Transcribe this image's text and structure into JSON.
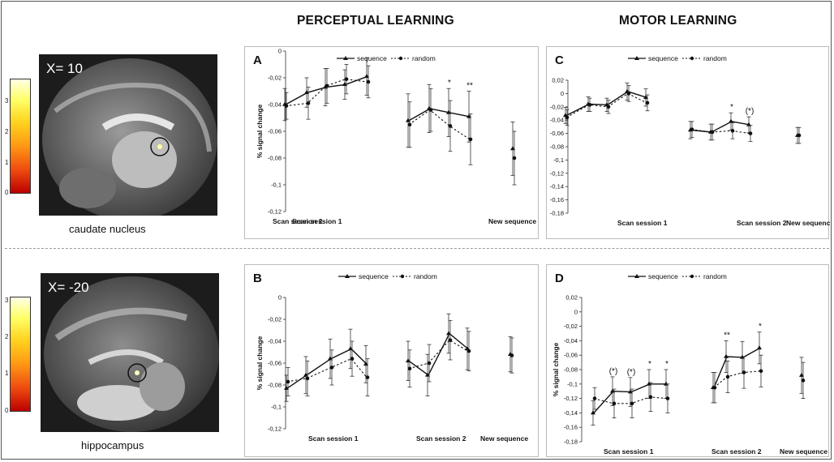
{
  "columns": {
    "perceptual": "PERCEPTUAL LEARNING",
    "motor": "MOTOR LEARNING"
  },
  "brains": [
    {
      "slice_label": "X= 10",
      "region": "caudate nucleus",
      "colorbar_ticks": [
        "3",
        "2",
        "1",
        "0"
      ]
    },
    {
      "slice_label": "X= -20",
      "region": "hippocampus",
      "colorbar_ticks": [
        "3",
        "2",
        "1",
        "0"
      ]
    }
  ],
  "chart_data": [
    {
      "panel": "A",
      "type": "line",
      "ylabel": "% signal change",
      "ylim": [
        -0.12,
        0
      ],
      "yticks": [
        "0",
        "-0,02",
        "-0,04",
        "-0,06",
        "-0,08",
        "-0,1",
        "-0,12"
      ],
      "session_labels": [
        "Scan session 1",
        "Scan session 2",
        "New sequence"
      ],
      "legend": [
        "sequence",
        "random"
      ],
      "series": [
        {
          "name": "sequence",
          "groups": [
            [
              -0.04,
              -0.031,
              -0.027,
              -0.025,
              -0.019
            ],
            [
              -0.052,
              -0.043,
              -0.046,
              -0.049
            ],
            [
              -0.073
            ]
          ],
          "errors": [
            [
              0.012,
              0.011,
              0.014,
              0.011,
              0.014
            ],
            [
              0.02,
              0.018,
              0.018,
              0.019
            ],
            [
              0.02
            ]
          ]
        },
        {
          "name": "random",
          "groups": [
            [
              -0.041,
              -0.039,
              -0.026,
              -0.021,
              -0.023
            ],
            [
              -0.055,
              -0.044,
              -0.056,
              -0.066
            ],
            [
              -0.08
            ]
          ],
          "errors": [
            [
              0.01,
              0.012,
              0.013,
              0.011,
              0.012
            ],
            [
              0.017,
              0.016,
              0.019,
              0.019
            ],
            [
              0.02
            ]
          ]
        }
      ],
      "annotations": [
        {
          "group": 1,
          "index": 2,
          "text": "*"
        },
        {
          "group": 1,
          "index": 3,
          "text": "**"
        }
      ]
    },
    {
      "panel": "C",
      "type": "line",
      "ylabel": "% signal change",
      "ylim": [
        -0.18,
        0.02
      ],
      "yticks": [
        "0,02",
        "0",
        "-0,02",
        "-0,04",
        "-0,06",
        "-0,08",
        "-0,1",
        "-0,12",
        "-0,14",
        "-0,16",
        "-0,18"
      ],
      "session_labels": [
        "Scan session 1",
        "Scan session 2",
        "New sequence"
      ],
      "legend": [
        "sequence",
        "random"
      ],
      "series": [
        {
          "name": "sequence",
          "groups": [
            [
              -0.033,
              -0.016,
              -0.017,
              0.003,
              -0.006
            ],
            [
              -0.055,
              -0.058,
              -0.042,
              -0.047
            ],
            [
              -0.063
            ]
          ],
          "errors": [
            [
              0.012,
              0.011,
              0.01,
              0.013,
              0.013
            ],
            [
              0.013,
              0.012,
              0.013,
              0.012
            ],
            [
              0.012
            ]
          ]
        },
        {
          "name": "random",
          "groups": [
            [
              -0.036,
              -0.017,
              -0.02,
              0,
              -0.014
            ],
            [
              -0.054,
              -0.058,
              -0.056,
              -0.06
            ],
            [
              -0.063
            ]
          ],
          "errors": [
            [
              0.012,
              0.01,
              0.01,
              0.012,
              0.012
            ],
            [
              0.012,
              0.012,
              0.012,
              0.012
            ],
            [
              0.012
            ]
          ]
        }
      ],
      "annotations": [
        {
          "group": 1,
          "index": 2,
          "text": "*"
        },
        {
          "group": 1,
          "index": 3,
          "text": "(*)"
        }
      ]
    },
    {
      "panel": "B",
      "type": "line",
      "ylabel": "% signal change",
      "ylim": [
        -0.12,
        0
      ],
      "yticks": [
        "0",
        "-0,02",
        "-0,04",
        "-0,06",
        "-0,08",
        "-0,1",
        "-0,12"
      ],
      "session_labels": [
        "Scan session 1",
        "Scan session 2",
        "New sequence"
      ],
      "legend": [
        "sequence",
        "random"
      ],
      "series": [
        {
          "name": "sequence",
          "groups": [
            [
              -0.083,
              -0.071,
              -0.056,
              -0.047,
              -0.061
            ],
            [
              -0.058,
              -0.071,
              -0.033,
              -0.047
            ],
            [
              -0.052
            ]
          ],
          "errors": [
            [
              0.012,
              0.017,
              0.018,
              0.018,
              0.017
            ],
            [
              0.018,
              0.019,
              0.018,
              0.019
            ],
            [
              0.016
            ]
          ]
        },
        {
          "name": "random",
          "groups": [
            [
              -0.077,
              -0.074,
              -0.064,
              -0.056,
              -0.073
            ],
            [
              -0.065,
              -0.06,
              -0.039,
              -0.049
            ],
            [
              -0.053
            ]
          ],
          "errors": [
            [
              0.013,
              0.016,
              0.016,
              0.016,
              0.017
            ],
            [
              0.017,
              0.017,
              0.018,
              0.018
            ],
            [
              0.016
            ]
          ]
        }
      ],
      "annotations": []
    },
    {
      "panel": "D",
      "type": "line",
      "ylabel": "% signal change",
      "ylim": [
        -0.18,
        0.02
      ],
      "yticks": [
        "0,02",
        "0",
        "-0,02",
        "-0,04",
        "-0,06",
        "-0,08",
        "-0,1",
        "-0,12",
        "-0,14",
        "-0,16",
        "-0,18"
      ],
      "session_labels": [
        "Scan session 1",
        "Scan session 2",
        "New sequence"
      ],
      "legend": [
        "sequence",
        "random"
      ],
      "series": [
        {
          "name": "sequence",
          "groups": [
            [
              -0.14,
              -0.11,
              -0.111,
              -0.1,
              -0.1
            ],
            [
              -0.105,
              -0.062,
              -0.063,
              -0.05
            ],
            [
              -0.088
            ]
          ],
          "errors": [
            [
              0.017,
              0.02,
              0.02,
              0.02,
              0.02
            ],
            [
              0.021,
              0.022,
              0.022,
              0.022
            ],
            [
              0.025
            ]
          ]
        },
        {
          "name": "random",
          "groups": [
            [
              -0.12,
              -0.127,
              -0.127,
              -0.118,
              -0.12
            ],
            [
              -0.105,
              -0.09,
              -0.084,
              -0.082
            ],
            [
              -0.095
            ]
          ],
          "errors": [
            [
              0.015,
              0.02,
              0.02,
              0.02,
              0.02
            ],
            [
              0.021,
              0.022,
              0.022,
              0.022
            ],
            [
              0.025
            ]
          ]
        }
      ],
      "annotations": [
        {
          "group": 0,
          "index": 1,
          "text": "(*)"
        },
        {
          "group": 0,
          "index": 2,
          "text": "(*)"
        },
        {
          "group": 0,
          "index": 3,
          "text": "*"
        },
        {
          "group": 0,
          "index": 4,
          "text": "*"
        },
        {
          "group": 1,
          "index": 1,
          "text": "**"
        },
        {
          "group": 1,
          "index": 3,
          "text": "*"
        }
      ]
    }
  ]
}
